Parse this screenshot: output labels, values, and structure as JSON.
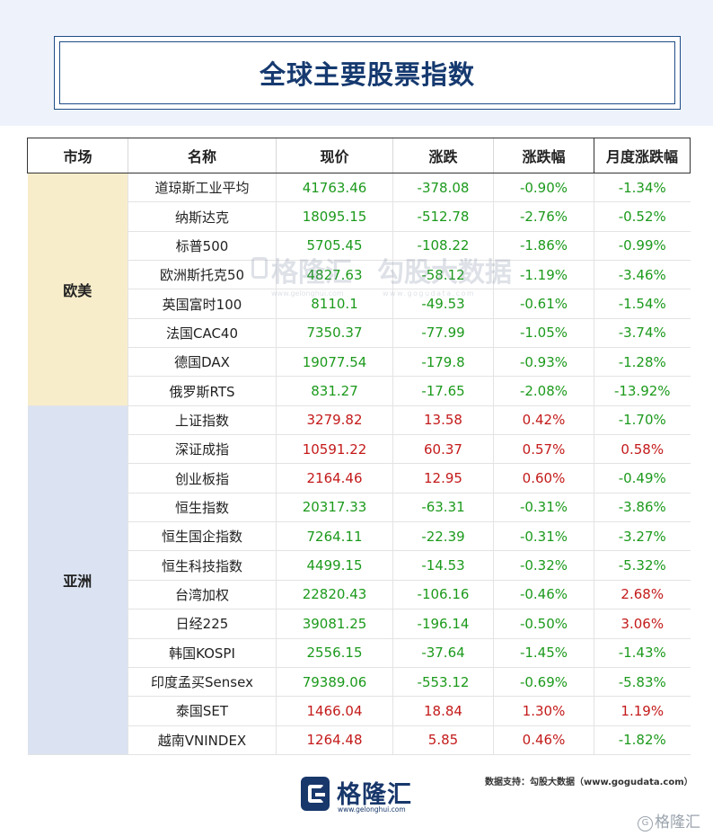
{
  "title": "全球主要股票指数",
  "headers": [
    "市场",
    "名称",
    "现价",
    "涨跌",
    "涨跌幅",
    "月度涨跌幅"
  ],
  "groups": [
    {
      "market": "欧美",
      "rows": [
        {
          "name": "道琼斯工业平均",
          "price": "41763.46",
          "change": "-378.08",
          "pct": "-0.90%",
          "month": "-1.34%"
        },
        {
          "name": "纳斯达克",
          "price": "18095.15",
          "change": "-512.78",
          "pct": "-2.76%",
          "month": "-0.52%"
        },
        {
          "name": "标普500",
          "price": "5705.45",
          "change": "-108.22",
          "pct": "-1.86%",
          "month": "-0.99%"
        },
        {
          "name": "欧洲斯托克50",
          "price": "4827.63",
          "change": "-58.12",
          "pct": "-1.19%",
          "month": "-3.46%"
        },
        {
          "name": "英国富时100",
          "price": "8110.1",
          "change": "-49.53",
          "pct": "-0.61%",
          "month": "-1.54%"
        },
        {
          "name": "法国CAC40",
          "price": "7350.37",
          "change": "-77.99",
          "pct": "-1.05%",
          "month": "-3.74%"
        },
        {
          "name": "德国DAX",
          "price": "19077.54",
          "change": "-179.8",
          "pct": "-0.93%",
          "month": "-1.28%"
        },
        {
          "name": "俄罗斯RTS",
          "price": "831.27",
          "change": "-17.65",
          "pct": "-2.08%",
          "month": "-13.92%"
        }
      ]
    },
    {
      "market": "亚洲",
      "rows": [
        {
          "name": "上证指数",
          "price": "3279.82",
          "change": "13.58",
          "pct": "0.42%",
          "month": "-1.70%"
        },
        {
          "name": "深证成指",
          "price": "10591.22",
          "change": "60.37",
          "pct": "0.57%",
          "month": "0.58%"
        },
        {
          "name": "创业板指",
          "price": "2164.46",
          "change": "12.95",
          "pct": "0.60%",
          "month": "-0.49%"
        },
        {
          "name": "恒生指数",
          "price": "20317.33",
          "change": "-63.31",
          "pct": "-0.31%",
          "month": "-3.86%"
        },
        {
          "name": "恒生国企指数",
          "price": "7264.11",
          "change": "-22.39",
          "pct": "-0.31%",
          "month": "-3.27%"
        },
        {
          "name": "恒生科技指数",
          "price": "4499.15",
          "change": "-14.53",
          "pct": "-0.32%",
          "month": "-5.32%"
        },
        {
          "name": "台湾加权",
          "price": "22820.43",
          "change": "-106.16",
          "pct": "-0.46%",
          "month": "2.68%"
        },
        {
          "name": "日经225",
          "price": "39081.25",
          "change": "-196.14",
          "pct": "-0.50%",
          "month": "3.06%"
        },
        {
          "name": "韩国KOSPI",
          "price": "2556.15",
          "change": "-37.64",
          "pct": "-1.45%",
          "month": "-1.43%"
        },
        {
          "name": "印度孟买Sensex",
          "price": "79389.06",
          "change": "-553.12",
          "pct": "-0.69%",
          "month": "-5.83%"
        },
        {
          "name": "泰国SET",
          "price": "1466.04",
          "change": "18.84",
          "pct": "1.30%",
          "month": "1.19%"
        },
        {
          "name": "越南VNINDEX",
          "price": "1264.48",
          "change": "5.85",
          "pct": "0.46%",
          "month": "-1.82%"
        }
      ]
    }
  ],
  "colors": {
    "up": "#c41a1a",
    "down": "#1c9a1c",
    "europe_bg": "#f8edca",
    "asia_bg": "#dbe3f2",
    "title": "#163a70"
  },
  "watermark": {
    "left_cn": "格隆汇",
    "left_url": "www.gelonghui.com",
    "right_cn": "勾股大数据",
    "right_url": "www.gogudata.com"
  },
  "footer": {
    "logo_cn": "格隆汇",
    "logo_url": "www.gelonghui.com",
    "source": "数据支持：勾股大数据（www.gogudata.com）",
    "corner_mark": "格隆汇",
    "corner_icon": "G"
  }
}
